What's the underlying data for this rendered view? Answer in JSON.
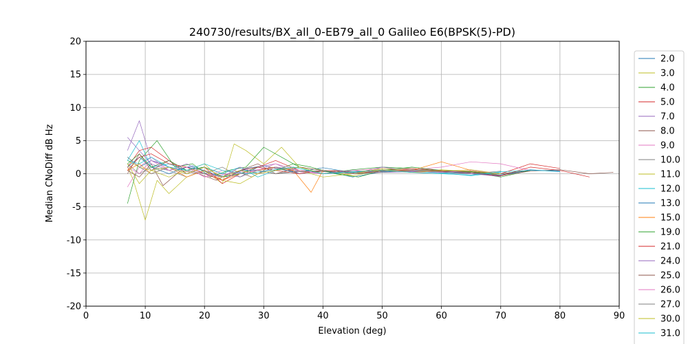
{
  "chart_data": {
    "type": "line",
    "title": "240730/results/BX_all_0-EB79_all_0 Galileo E6(BPSK(5)-PD)",
    "xlabel": "Elevation (deg)",
    "ylabel": "Median CNoDiff dB Hz",
    "xlim": [
      0,
      90
    ],
    "ylim": [
      -20,
      20
    ],
    "xticks": [
      0,
      10,
      20,
      30,
      40,
      50,
      60,
      70,
      80,
      90
    ],
    "yticks": [
      -20,
      -15,
      -10,
      -5,
      0,
      5,
      10,
      15,
      20
    ],
    "grid": true,
    "legend_position": "right-outside",
    "series": [
      {
        "name": "2.0",
        "color": "#1f77b4",
        "x": [
          7,
          9,
          11,
          13,
          15,
          18,
          21,
          24,
          27,
          30,
          33,
          36,
          40,
          45,
          50,
          55,
          60,
          65,
          70,
          75,
          80
        ],
        "y": [
          2.5,
          1.0,
          2.0,
          1.5,
          0.5,
          1.2,
          0.0,
          -0.5,
          0.8,
          1.2,
          0.6,
          0.3,
          0.9,
          0.2,
          0.6,
          0.4,
          0.5,
          0.3,
          -0.2,
          0.5,
          0.5
        ]
      },
      {
        "name": "3.0",
        "color": "#bcbd22",
        "x": [
          7,
          8,
          10,
          12,
          14,
          17,
          20,
          23,
          25,
          27,
          30,
          33,
          36,
          40,
          45,
          50,
          55,
          60,
          65,
          70
        ],
        "y": [
          1.0,
          -1.0,
          -7.0,
          -1.0,
          -3.0,
          -0.5,
          0.5,
          -1.5,
          4.5,
          3.5,
          1.5,
          4.0,
          1.0,
          0.5,
          -0.3,
          0.5,
          0.2,
          0.6,
          0.3,
          -0.2
        ]
      },
      {
        "name": "4.0",
        "color": "#2ca02c",
        "x": [
          7,
          9,
          12,
          15,
          18,
          21,
          24,
          27,
          30,
          33,
          36,
          40,
          45,
          50,
          55,
          60,
          65,
          70,
          75
        ],
        "y": [
          -4.5,
          2.0,
          5.0,
          1.0,
          1.5,
          -0.5,
          0.5,
          1.0,
          4.0,
          2.5,
          1.0,
          0.0,
          0.6,
          1.0,
          0.8,
          0.4,
          0.2,
          -0.5,
          0.5
        ]
      },
      {
        "name": "5.0",
        "color": "#d62728",
        "x": [
          7,
          9,
          11,
          14,
          17,
          20,
          23,
          26,
          29,
          32,
          36,
          40,
          45,
          50,
          55,
          60,
          65,
          70,
          75,
          80
        ],
        "y": [
          1.0,
          3.5,
          4.0,
          2.0,
          0.5,
          1.0,
          -1.5,
          0.0,
          1.0,
          2.0,
          0.5,
          0.0,
          0.3,
          0.5,
          0.8,
          0.5,
          0.3,
          0.0,
          1.5,
          0.8
        ]
      },
      {
        "name": "7.0",
        "color": "#9467bd",
        "x": [
          7,
          9,
          11,
          14,
          17,
          20,
          23,
          26,
          29,
          32,
          36,
          40,
          45,
          50,
          55,
          60,
          65,
          70
        ],
        "y": [
          3.5,
          8.0,
          2.0,
          1.0,
          0.0,
          1.0,
          0.0,
          -0.5,
          1.0,
          1.5,
          0.0,
          0.5,
          0.0,
          1.0,
          0.4,
          0.3,
          0.2,
          -0.4
        ]
      },
      {
        "name": "8.0",
        "color": "#8c564b",
        "x": [
          7,
          9,
          11,
          13,
          16,
          19,
          22,
          25,
          28,
          31,
          34,
          38,
          42,
          46,
          50,
          55,
          60,
          65,
          70,
          75,
          80,
          85,
          89
        ],
        "y": [
          0.5,
          -0.5,
          1.5,
          -1.8,
          0.5,
          0.0,
          -1.0,
          0.5,
          -0.5,
          1.0,
          0.5,
          0.2,
          0.5,
          0.0,
          0.4,
          0.6,
          0.5,
          0.2,
          -0.3,
          0.4,
          0.6,
          0.0,
          0.2
        ]
      },
      {
        "name": "9.0",
        "color": "#e377c2",
        "x": [
          7,
          9,
          11,
          14,
          17,
          20,
          24,
          28,
          32,
          36,
          40,
          45,
          50,
          55,
          60,
          65,
          70,
          75
        ],
        "y": [
          -2.0,
          1.0,
          2.5,
          0.5,
          1.0,
          -0.5,
          0.0,
          0.5,
          1.0,
          0.3,
          0.0,
          0.5,
          0.8,
          0.6,
          1.0,
          1.8,
          1.5,
          0.5
        ]
      },
      {
        "name": "10.0",
        "color": "#7f7f7f",
        "x": [
          7,
          9,
          11,
          14,
          17,
          20,
          23,
          26,
          29,
          32,
          36,
          40,
          45,
          50,
          55,
          60,
          65,
          70
        ],
        "y": [
          1.5,
          0.0,
          1.0,
          0.5,
          -0.5,
          0.5,
          -1.0,
          0.0,
          0.5,
          0.0,
          0.5,
          0.3,
          0.2,
          0.5,
          0.3,
          0.2,
          0.0,
          0.4
        ]
      },
      {
        "name": "11.0",
        "color": "#bcbd22",
        "x": [
          7,
          9,
          11,
          14,
          17,
          20,
          23,
          26,
          29,
          32,
          36,
          40,
          45,
          50,
          55,
          60,
          65,
          70
        ],
        "y": [
          2.0,
          1.0,
          0.5,
          -0.5,
          0.5,
          1.5,
          -1.0,
          -1.5,
          0.0,
          1.0,
          0.5,
          -0.5,
          0.0,
          0.8,
          0.5,
          0.4,
          0.6,
          0.0
        ]
      },
      {
        "name": "12.0",
        "color": "#17becf",
        "x": [
          7,
          9,
          11,
          14,
          17,
          20,
          23,
          26,
          29,
          32,
          36,
          40,
          45,
          50,
          55,
          60,
          65,
          70
        ],
        "y": [
          2.0,
          5.0,
          1.0,
          1.5,
          0.5,
          1.0,
          0.0,
          1.0,
          -0.5,
          0.5,
          1.0,
          0.0,
          0.2,
          0.6,
          0.4,
          0.1,
          -0.3,
          0.2
        ]
      },
      {
        "name": "13.0",
        "color": "#1f77b4",
        "x": [
          7,
          9,
          11,
          14,
          17,
          20,
          23,
          26,
          29,
          32,
          36,
          40,
          45,
          50,
          55,
          60,
          65,
          70,
          75,
          80
        ],
        "y": [
          1.0,
          2.5,
          1.0,
          0.0,
          1.0,
          0.5,
          -0.5,
          0.5,
          0.5,
          1.0,
          0.0,
          0.5,
          -0.5,
          0.3,
          0.5,
          0.2,
          0.0,
          -0.2,
          0.6,
          0.3
        ]
      },
      {
        "name": "15.0",
        "color": "#ff7f0e",
        "x": [
          7,
          9,
          11,
          14,
          17,
          20,
          23,
          26,
          29,
          32,
          35,
          38,
          40,
          45,
          50,
          55,
          60,
          65,
          70
        ],
        "y": [
          0.5,
          1.5,
          0.0,
          1.0,
          -0.5,
          0.5,
          -1.0,
          0.0,
          0.5,
          1.0,
          0.5,
          -2.8,
          0.5,
          0.0,
          0.5,
          0.5,
          1.8,
          0.5,
          0.0
        ]
      },
      {
        "name": "19.0",
        "color": "#2ca02c",
        "x": [
          7,
          9,
          11,
          14,
          17,
          20,
          23,
          26,
          29,
          32,
          35,
          38,
          42,
          46,
          50,
          55,
          60,
          65,
          70,
          75
        ],
        "y": [
          1.5,
          3.0,
          1.0,
          2.0,
          0.5,
          1.0,
          -0.5,
          0.0,
          1.0,
          0.5,
          1.5,
          1.0,
          0.0,
          -0.5,
          0.5,
          1.0,
          0.5,
          0.3,
          0.0,
          0.5
        ]
      },
      {
        "name": "21.0",
        "color": "#d62728",
        "x": [
          7,
          9,
          11,
          14,
          17,
          20,
          23,
          26,
          29,
          32,
          36,
          40,
          45,
          50,
          55,
          60,
          65,
          70,
          75,
          80,
          85
        ],
        "y": [
          0.5,
          2.5,
          3.0,
          1.5,
          1.0,
          0.0,
          -1.0,
          0.5,
          1.0,
          0.5,
          0.0,
          0.5,
          0.3,
          0.6,
          0.2,
          0.4,
          0.0,
          -0.3,
          1.0,
          0.5,
          -0.5
        ]
      },
      {
        "name": "24.0",
        "color": "#9467bd",
        "x": [
          7,
          9,
          11,
          14,
          17,
          20,
          23,
          26,
          29,
          32,
          36,
          40,
          45,
          50,
          55,
          60,
          65,
          70
        ],
        "y": [
          5.5,
          3.5,
          1.5,
          0.5,
          1.5,
          0.0,
          -0.5,
          1.0,
          0.0,
          1.0,
          0.5,
          0.0,
          0.5,
          0.2,
          0.3,
          0.5,
          0.0,
          -0.4
        ]
      },
      {
        "name": "25.0",
        "color": "#8c564b",
        "x": [
          7,
          9,
          11,
          14,
          17,
          20,
          23,
          26,
          29,
          32,
          36,
          40,
          45,
          50,
          55,
          60,
          65,
          70,
          75
        ],
        "y": [
          0.0,
          3.0,
          0.5,
          2.0,
          0.0,
          1.0,
          -0.5,
          0.5,
          1.5,
          0.0,
          1.0,
          0.5,
          0.0,
          0.4,
          0.6,
          0.5,
          0.2,
          0.0,
          0.5
        ]
      },
      {
        "name": "26.0",
        "color": "#e377c2",
        "x": [
          7,
          9,
          11,
          14,
          17,
          20,
          23,
          26,
          29,
          32,
          36,
          40,
          45,
          50,
          55,
          60,
          65,
          70
        ],
        "y": [
          1.0,
          0.0,
          2.0,
          0.5,
          1.0,
          -0.5,
          0.5,
          0.0,
          0.5,
          1.5,
          0.5,
          0.0,
          0.3,
          0.5,
          0.4,
          0.2,
          0.5,
          0.0
        ]
      },
      {
        "name": "27.0",
        "color": "#7f7f7f",
        "x": [
          7,
          9,
          11,
          14,
          17,
          20,
          23,
          26,
          29,
          32,
          36,
          40,
          45,
          50,
          55,
          60,
          65
        ],
        "y": [
          2.5,
          1.0,
          0.0,
          1.0,
          0.5,
          0.0,
          1.0,
          -0.5,
          0.5,
          0.0,
          0.3,
          0.5,
          0.0,
          0.2,
          0.5,
          0.3,
          0.1
        ]
      },
      {
        "name": "30.0",
        "color": "#bcbd22",
        "x": [
          7,
          9,
          11,
          14,
          17,
          20,
          23,
          26,
          29,
          32,
          36,
          40,
          45,
          50,
          55,
          60,
          65,
          70
        ],
        "y": [
          1.5,
          -1.5,
          0.5,
          1.0,
          0.0,
          1.0,
          -0.5,
          0.5,
          0.0,
          0.5,
          1.0,
          0.0,
          0.3,
          0.6,
          0.2,
          0.5,
          0.4,
          0.0
        ]
      },
      {
        "name": "31.0",
        "color": "#17becf",
        "x": [
          7,
          9,
          11,
          14,
          17,
          20,
          23,
          27,
          31,
          35,
          40,
          45,
          50,
          55,
          60,
          65,
          70,
          75,
          80
        ],
        "y": [
          2.0,
          1.5,
          2.5,
          1.0,
          0.5,
          1.5,
          0.5,
          0.0,
          0.5,
          1.0,
          0.0,
          0.3,
          0.5,
          0.2,
          0.0,
          -0.2,
          0.3,
          0.5,
          0.4
        ]
      }
    ]
  }
}
